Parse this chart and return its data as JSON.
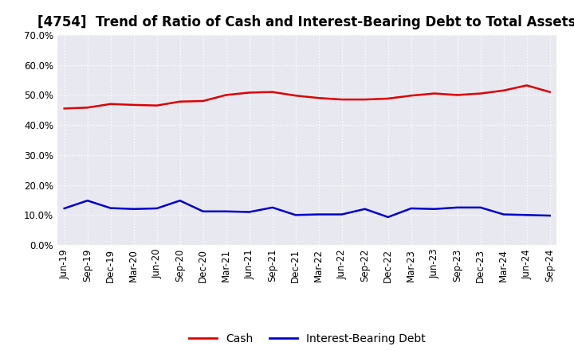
{
  "title": "[4754]  Trend of Ratio of Cash and Interest-Bearing Debt to Total Assets",
  "x_labels": [
    "Jun-19",
    "Sep-19",
    "Dec-19",
    "Mar-20",
    "Jun-20",
    "Sep-20",
    "Dec-20",
    "Mar-21",
    "Jun-21",
    "Sep-21",
    "Dec-21",
    "Mar-22",
    "Jun-22",
    "Sep-22",
    "Dec-22",
    "Mar-23",
    "Jun-23",
    "Sep-23",
    "Dec-23",
    "Mar-24",
    "Jun-24",
    "Sep-24"
  ],
  "cash": [
    0.455,
    0.458,
    0.47,
    0.467,
    0.465,
    0.478,
    0.48,
    0.5,
    0.508,
    0.51,
    0.498,
    0.49,
    0.485,
    0.485,
    0.488,
    0.498,
    0.505,
    0.5,
    0.505,
    0.515,
    0.532,
    0.51
  ],
  "ibd": [
    0.122,
    0.148,
    0.123,
    0.12,
    0.122,
    0.148,
    0.112,
    0.112,
    0.11,
    0.125,
    0.1,
    0.102,
    0.102,
    0.12,
    0.093,
    0.122,
    0.12,
    0.125,
    0.125,
    0.102,
    0.1,
    0.098
  ],
  "cash_color": "#dd0000",
  "ibd_color": "#0000cc",
  "background_color": "#ffffff",
  "plot_bg_color": "#e8e8f0",
  "grid_color": "#ffffff",
  "ylim": [
    0.0,
    0.7
  ],
  "yticks": [
    0.0,
    0.1,
    0.2,
    0.3,
    0.4,
    0.5,
    0.6,
    0.7
  ],
  "legend_cash": "Cash",
  "legend_ibd": "Interest-Bearing Debt",
  "title_fontsize": 12,
  "axis_fontsize": 8.5,
  "legend_fontsize": 10,
  "line_width": 1.8
}
